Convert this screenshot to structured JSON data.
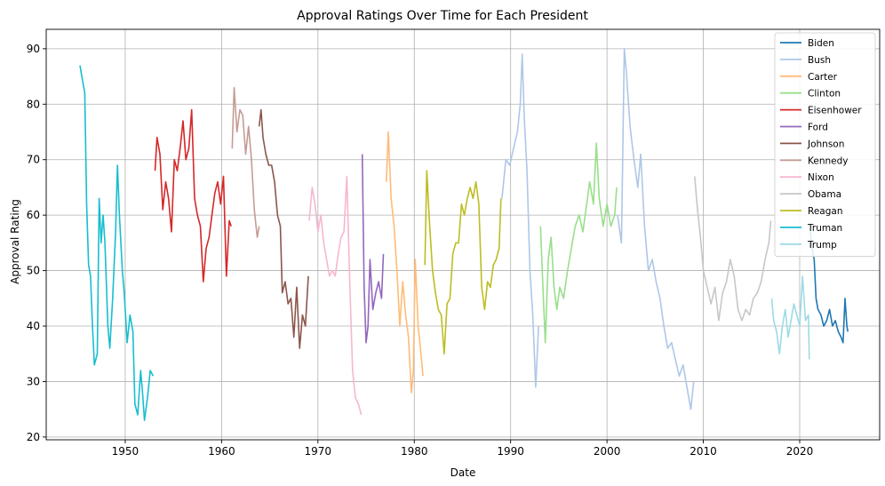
{
  "chart_data": {
    "type": "line",
    "title": "Approval Ratings Over Time for Each President",
    "xlabel": "Date",
    "ylabel": "Approval Rating",
    "xlim": [
      1941.8,
      2028.3
    ],
    "ylim": [
      19.5,
      93.5
    ],
    "xticks": [
      1950,
      1960,
      1970,
      1980,
      1990,
      2000,
      2010,
      2020
    ],
    "yticks": [
      20,
      30,
      40,
      50,
      60,
      70,
      80,
      90
    ],
    "grid": true,
    "legend": "top-right",
    "series": [
      {
        "name": "Biden",
        "color": "#1f77b4",
        "points": [
          [
            2021.1,
            57
          ],
          [
            2021.3,
            54
          ],
          [
            2021.5,
            52
          ],
          [
            2021.7,
            45
          ],
          [
            2021.9,
            43
          ],
          [
            2022.2,
            42
          ],
          [
            2022.5,
            40
          ],
          [
            2022.8,
            41
          ],
          [
            2023.1,
            43
          ],
          [
            2023.4,
            40
          ],
          [
            2023.7,
            41
          ],
          [
            2024.0,
            39
          ],
          [
            2024.3,
            38
          ],
          [
            2024.5,
            37
          ],
          [
            2024.7,
            45
          ],
          [
            2024.9,
            40
          ],
          [
            2025.0,
            39
          ]
        ]
      },
      {
        "name": "Bush",
        "color": "#aec7e8",
        "points": [
          [
            1989.1,
            63
          ],
          [
            1989.5,
            70
          ],
          [
            1989.9,
            69
          ],
          [
            1990.3,
            72
          ],
          [
            1990.7,
            75
          ],
          [
            1991.0,
            80
          ],
          [
            1991.2,
            89
          ],
          [
            1991.4,
            78
          ],
          [
            1991.7,
            68
          ],
          [
            1992.0,
            50
          ],
          [
            1992.3,
            42
          ],
          [
            1992.6,
            29
          ],
          [
            1992.9,
            40
          ],
          [
            2001.1,
            60
          ],
          [
            2001.5,
            55
          ],
          [
            2001.8,
            90
          ],
          [
            2002.0,
            86
          ],
          [
            2002.4,
            76
          ],
          [
            2002.8,
            70
          ],
          [
            2003.2,
            65
          ],
          [
            2003.5,
            71
          ],
          [
            2003.9,
            58
          ],
          [
            2004.3,
            50
          ],
          [
            2004.7,
            52
          ],
          [
            2005.1,
            48
          ],
          [
            2005.5,
            45
          ],
          [
            2005.9,
            40
          ],
          [
            2006.3,
            36
          ],
          [
            2006.7,
            37
          ],
          [
            2007.1,
            34
          ],
          [
            2007.5,
            31
          ],
          [
            2007.9,
            33
          ],
          [
            2008.3,
            29
          ],
          [
            2008.7,
            25
          ],
          [
            2009.0,
            30
          ]
        ]
      },
      {
        "name": "Carter",
        "color": "#ffbb78",
        "points": [
          [
            1977.1,
            66
          ],
          [
            1977.3,
            75
          ],
          [
            1977.6,
            63
          ],
          [
            1977.9,
            58
          ],
          [
            1978.2,
            50
          ],
          [
            1978.5,
            40
          ],
          [
            1978.8,
            48
          ],
          [
            1979.1,
            42
          ],
          [
            1979.4,
            38
          ],
          [
            1979.7,
            28
          ],
          [
            1979.9,
            32
          ],
          [
            1980.1,
            52
          ],
          [
            1980.4,
            40
          ],
          [
            1980.7,
            35
          ],
          [
            1980.9,
            31
          ]
        ]
      },
      {
        "name": "Clinton",
        "color": "#98df8a",
        "points": [
          [
            1993.1,
            58
          ],
          [
            1993.3,
            49
          ],
          [
            1993.6,
            37
          ],
          [
            1993.9,
            52
          ],
          [
            1994.2,
            56
          ],
          [
            1994.5,
            47
          ],
          [
            1994.8,
            43
          ],
          [
            1995.1,
            47
          ],
          [
            1995.5,
            45
          ],
          [
            1995.9,
            50
          ],
          [
            1996.3,
            54
          ],
          [
            1996.7,
            58
          ],
          [
            1997.1,
            60
          ],
          [
            1997.5,
            57
          ],
          [
            1997.9,
            62
          ],
          [
            1998.2,
            66
          ],
          [
            1998.6,
            62
          ],
          [
            1998.9,
            73
          ],
          [
            1999.2,
            63
          ],
          [
            1999.6,
            58
          ],
          [
            2000.0,
            62
          ],
          [
            2000.4,
            58
          ],
          [
            2000.8,
            60
          ],
          [
            2001.0,
            65
          ]
        ]
      },
      {
        "name": "Eisenhower",
        "color": "#d62728",
        "points": [
          [
            1953.1,
            68
          ],
          [
            1953.3,
            74
          ],
          [
            1953.6,
            71
          ],
          [
            1953.9,
            61
          ],
          [
            1954.2,
            66
          ],
          [
            1954.5,
            63
          ],
          [
            1954.8,
            57
          ],
          [
            1955.1,
            70
          ],
          [
            1955.4,
            68
          ],
          [
            1955.7,
            72
          ],
          [
            1956.0,
            77
          ],
          [
            1956.3,
            70
          ],
          [
            1956.6,
            72
          ],
          [
            1956.9,
            79
          ],
          [
            1957.2,
            63
          ],
          [
            1957.5,
            60
          ],
          [
            1957.8,
            58
          ],
          [
            1958.1,
            48
          ],
          [
            1958.4,
            54
          ],
          [
            1958.7,
            56
          ],
          [
            1959.0,
            60
          ],
          [
            1959.3,
            64
          ],
          [
            1959.6,
            66
          ],
          [
            1959.9,
            62
          ],
          [
            1960.2,
            67
          ],
          [
            1960.5,
            49
          ],
          [
            1960.8,
            59
          ],
          [
            1961.0,
            58
          ]
        ]
      },
      {
        "name": "Ford",
        "color": "#9467bd",
        "points": [
          [
            1974.6,
            71
          ],
          [
            1974.8,
            47
          ],
          [
            1975.0,
            37
          ],
          [
            1975.2,
            40
          ],
          [
            1975.4,
            52
          ],
          [
            1975.7,
            43
          ],
          [
            1976.0,
            46
          ],
          [
            1976.3,
            48
          ],
          [
            1976.6,
            45
          ],
          [
            1976.8,
            53
          ]
        ]
      },
      {
        "name": "Johnson",
        "color": "#8c564b",
        "points": [
          [
            1963.9,
            76
          ],
          [
            1964.1,
            79
          ],
          [
            1964.3,
            74
          ],
          [
            1964.6,
            71
          ],
          [
            1964.9,
            69
          ],
          [
            1965.2,
            69
          ],
          [
            1965.5,
            66
          ],
          [
            1965.8,
            60
          ],
          [
            1966.1,
            58
          ],
          [
            1966.3,
            46
          ],
          [
            1966.6,
            48
          ],
          [
            1966.9,
            44
          ],
          [
            1967.2,
            45
          ],
          [
            1967.5,
            38
          ],
          [
            1967.8,
            47
          ],
          [
            1968.1,
            36
          ],
          [
            1968.4,
            42
          ],
          [
            1968.7,
            40
          ],
          [
            1969.0,
            49
          ]
        ]
      },
      {
        "name": "Kennedy",
        "color": "#c49c94",
        "points": [
          [
            1961.1,
            72
          ],
          [
            1961.3,
            83
          ],
          [
            1961.6,
            75
          ],
          [
            1961.9,
            79
          ],
          [
            1962.2,
            78
          ],
          [
            1962.5,
            71
          ],
          [
            1962.8,
            76
          ],
          [
            1963.1,
            70
          ],
          [
            1963.4,
            61
          ],
          [
            1963.7,
            56
          ],
          [
            1963.9,
            58
          ]
        ]
      },
      {
        "name": "Nixon",
        "color": "#f7b6d2",
        "points": [
          [
            1969.1,
            59
          ],
          [
            1969.4,
            65
          ],
          [
            1969.7,
            62
          ],
          [
            1970.0,
            57
          ],
          [
            1970.3,
            60
          ],
          [
            1970.6,
            55
          ],
          [
            1970.9,
            52
          ],
          [
            1971.2,
            49
          ],
          [
            1971.5,
            50
          ],
          [
            1971.8,
            49
          ],
          [
            1972.1,
            53
          ],
          [
            1972.4,
            56
          ],
          [
            1972.7,
            57
          ],
          [
            1973.0,
            67
          ],
          [
            1973.3,
            48
          ],
          [
            1973.6,
            32
          ],
          [
            1973.9,
            27
          ],
          [
            1974.2,
            26
          ],
          [
            1974.5,
            24
          ]
        ]
      },
      {
        "name": "Obama",
        "color": "#c7c7c7",
        "points": [
          [
            2009.1,
            67
          ],
          [
            2009.4,
            61
          ],
          [
            2009.7,
            56
          ],
          [
            2010.0,
            50
          ],
          [
            2010.4,
            47
          ],
          [
            2010.8,
            44
          ],
          [
            2011.2,
            47
          ],
          [
            2011.6,
            41
          ],
          [
            2012.0,
            46
          ],
          [
            2012.4,
            48
          ],
          [
            2012.8,
            52
          ],
          [
            2013.2,
            49
          ],
          [
            2013.6,
            43
          ],
          [
            2014.0,
            41
          ],
          [
            2014.4,
            43
          ],
          [
            2014.8,
            42
          ],
          [
            2015.2,
            45
          ],
          [
            2015.6,
            46
          ],
          [
            2016.0,
            48
          ],
          [
            2016.4,
            52
          ],
          [
            2016.8,
            55
          ],
          [
            2017.0,
            59
          ]
        ]
      },
      {
        "name": "Reagan",
        "color": "#bcbd22",
        "points": [
          [
            1981.1,
            51
          ],
          [
            1981.3,
            68
          ],
          [
            1981.6,
            58
          ],
          [
            1981.9,
            50
          ],
          [
            1982.2,
            46
          ],
          [
            1982.5,
            43
          ],
          [
            1982.8,
            42
          ],
          [
            1983.1,
            35
          ],
          [
            1983.4,
            44
          ],
          [
            1983.7,
            45
          ],
          [
            1984.0,
            53
          ],
          [
            1984.3,
            55
          ],
          [
            1984.6,
            55
          ],
          [
            1984.9,
            62
          ],
          [
            1985.2,
            60
          ],
          [
            1985.5,
            63
          ],
          [
            1985.8,
            65
          ],
          [
            1986.1,
            63
          ],
          [
            1986.4,
            66
          ],
          [
            1986.7,
            62
          ],
          [
            1987.0,
            47
          ],
          [
            1987.3,
            43
          ],
          [
            1987.6,
            48
          ],
          [
            1987.9,
            47
          ],
          [
            1988.2,
            51
          ],
          [
            1988.5,
            52
          ],
          [
            1988.8,
            54
          ],
          [
            1989.0,
            63
          ]
        ]
      },
      {
        "name": "Truman",
        "color": "#17becf",
        "points": [
          [
            1945.3,
            87
          ],
          [
            1945.5,
            85
          ],
          [
            1945.8,
            82
          ],
          [
            1946.0,
            62
          ],
          [
            1946.2,
            51
          ],
          [
            1946.4,
            49
          ],
          [
            1946.6,
            40
          ],
          [
            1946.8,
            33
          ],
          [
            1947.1,
            35
          ],
          [
            1947.3,
            63
          ],
          [
            1947.5,
            55
          ],
          [
            1947.7,
            60
          ],
          [
            1947.9,
            55
          ],
          [
            1948.2,
            40
          ],
          [
            1948.4,
            36
          ],
          [
            1948.7,
            45
          ],
          [
            1949.0,
            57
          ],
          [
            1949.2,
            69
          ],
          [
            1949.4,
            60
          ],
          [
            1949.7,
            50
          ],
          [
            1949.9,
            46
          ],
          [
            1950.2,
            37
          ],
          [
            1950.5,
            42
          ],
          [
            1950.8,
            39
          ],
          [
            1951.0,
            26
          ],
          [
            1951.3,
            24
          ],
          [
            1951.6,
            32
          ],
          [
            1951.8,
            28
          ],
          [
            1952.0,
            23
          ],
          [
            1952.3,
            27
          ],
          [
            1952.6,
            32
          ],
          [
            1952.9,
            31
          ]
        ]
      },
      {
        "name": "Trump",
        "color": "#9edae5",
        "points": [
          [
            2017.1,
            45
          ],
          [
            2017.3,
            41
          ],
          [
            2017.6,
            39
          ],
          [
            2017.9,
            35
          ],
          [
            2018.2,
            40
          ],
          [
            2018.5,
            43
          ],
          [
            2018.8,
            38
          ],
          [
            2019.1,
            41
          ],
          [
            2019.4,
            44
          ],
          [
            2019.7,
            42
          ],
          [
            2020.0,
            40
          ],
          [
            2020.3,
            49
          ],
          [
            2020.6,
            41
          ],
          [
            2020.9,
            42
          ],
          [
            2021.0,
            34
          ]
        ]
      }
    ]
  }
}
